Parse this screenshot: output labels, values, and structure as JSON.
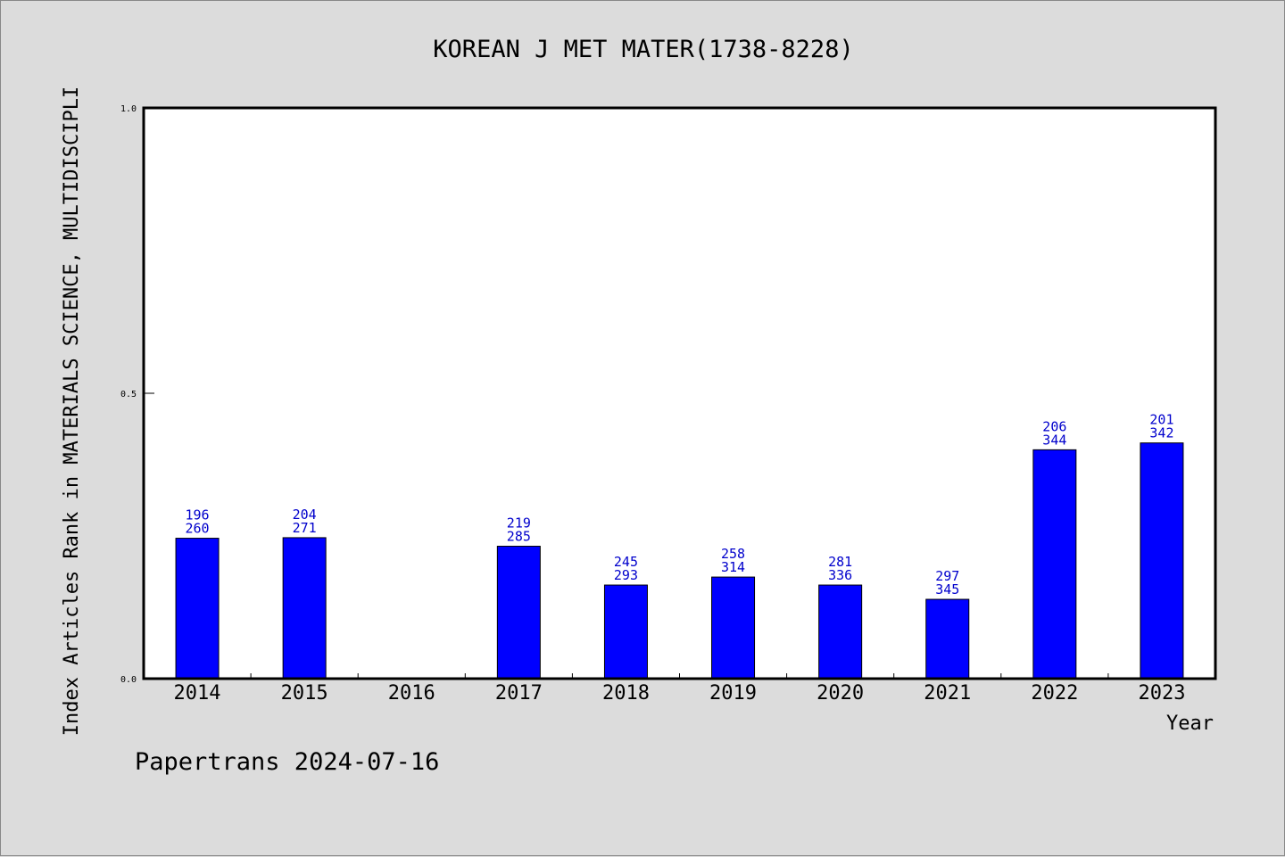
{
  "chart_data": {
    "type": "bar",
    "title": "KOREAN J MET MATER(1738-8228)",
    "xlabel": "Year",
    "ylabel": "Index Articles Rank in MATERIALS SCIENCE, MULTIDISCIPLI",
    "ylim": [
      0.0,
      1.0
    ],
    "yticks": [
      "0.0",
      "0.5",
      "1.0"
    ],
    "grid": false,
    "categories": [
      "2014",
      "2015",
      "2016",
      "2017",
      "2018",
      "2019",
      "2020",
      "2021",
      "2022",
      "2023"
    ],
    "values": [
      0.246,
      0.247,
      null,
      0.232,
      0.164,
      0.178,
      0.164,
      0.139,
      0.401,
      0.413
    ],
    "rank_labels": [
      [
        "196",
        "260"
      ],
      [
        "204",
        "271"
      ],
      null,
      [
        "219",
        "285"
      ],
      [
        "245",
        "293"
      ],
      [
        "258",
        "314"
      ],
      [
        "281",
        "336"
      ],
      [
        "297",
        "345"
      ],
      [
        "206",
        "344"
      ],
      [
        "201",
        "342"
      ]
    ],
    "bar_color": "#0000ff",
    "label_color": "#0000cc"
  },
  "footer": "Papertrans 2024-07-16"
}
